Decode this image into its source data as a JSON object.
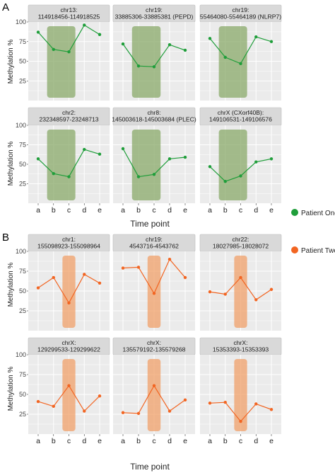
{
  "figure": {
    "x_axis_title": "Time point",
    "y_axis_title": "Methylation %",
    "time_points": [
      "a",
      "b",
      "c",
      "d",
      "e"
    ]
  },
  "colors": {
    "green": "#1f9e3a",
    "green_band": "#8aaa6a",
    "orange": "#f26522",
    "orange_band": "#f0a06a",
    "panel_bg": "#ebebeb",
    "strip_bg": "#d9d9d9"
  },
  "chart_data": [
    {
      "type": "line",
      "panel_label": "A",
      "x_axis_title": "Time point",
      "y_axis_title": "Methylation %",
      "ylim": [
        0,
        100
      ],
      "y_ticks": [
        25,
        50,
        75,
        100
      ],
      "x": [
        "a",
        "b",
        "c",
        "d",
        "e"
      ],
      "highlight_range": [
        "b",
        "c"
      ],
      "legend": {
        "label": "Patient One",
        "color": "#1f9e3a",
        "position": "right"
      },
      "facets": [
        {
          "strip": [
            "chr13:",
            "114918456-114918525"
          ],
          "values": [
            87,
            65,
            62,
            96,
            84
          ]
        },
        {
          "strip": [
            "chr19:",
            "33885306-33885381 (PEPD)"
          ],
          "values": [
            72,
            44,
            43,
            71,
            64
          ]
        },
        {
          "strip": [
            "chr19:",
            "55464080-55464189 (NLRP7)"
          ],
          "values": [
            79,
            55,
            47,
            81,
            75
          ]
        },
        {
          "strip": [
            "chr2:",
            "232348597-23248713"
          ],
          "values": [
            57,
            38,
            34,
            69,
            63
          ]
        },
        {
          "strip": [
            "chr8:",
            "145003618-145003684 (PLEC)"
          ],
          "values": [
            70,
            34,
            37,
            57,
            59
          ]
        },
        {
          "strip": [
            "chrX (CXorf40B):",
            "149106531-149106576"
          ],
          "values": [
            47,
            28,
            35,
            53,
            57
          ]
        }
      ]
    },
    {
      "type": "line",
      "panel_label": "B",
      "x_axis_title": "Time point",
      "y_axis_title": "Methylation %",
      "ylim": [
        0,
        100
      ],
      "y_ticks": [
        25,
        50,
        75,
        100
      ],
      "x": [
        "a",
        "b",
        "c",
        "d",
        "e"
      ],
      "highlight_range": [
        "c",
        "c"
      ],
      "legend": {
        "label": "Patient Two",
        "color": "#f26522",
        "position": "right"
      },
      "facets": [
        {
          "strip": [
            "chr1:",
            "155098923-155098964"
          ],
          "values": [
            54,
            67,
            35,
            71,
            60
          ]
        },
        {
          "strip": [
            "chr19:",
            "4543716-4543762"
          ],
          "values": [
            79,
            80,
            47,
            90,
            67
          ]
        },
        {
          "strip": [
            "chr22:",
            "18027985-18028072"
          ],
          "values": [
            49,
            46,
            67,
            39,
            52
          ]
        },
        {
          "strip": [
            "chrX:",
            "129299533-129299622"
          ],
          "values": [
            41,
            35,
            61,
            29,
            48
          ]
        },
        {
          "strip": [
            "chrX:",
            "135579192-135579268"
          ],
          "values": [
            27,
            26,
            61,
            29,
            43
          ]
        },
        {
          "strip": [
            "chrX:",
            "15353393-15353393"
          ],
          "values": [
            39,
            40,
            16,
            38,
            31
          ]
        }
      ]
    }
  ]
}
